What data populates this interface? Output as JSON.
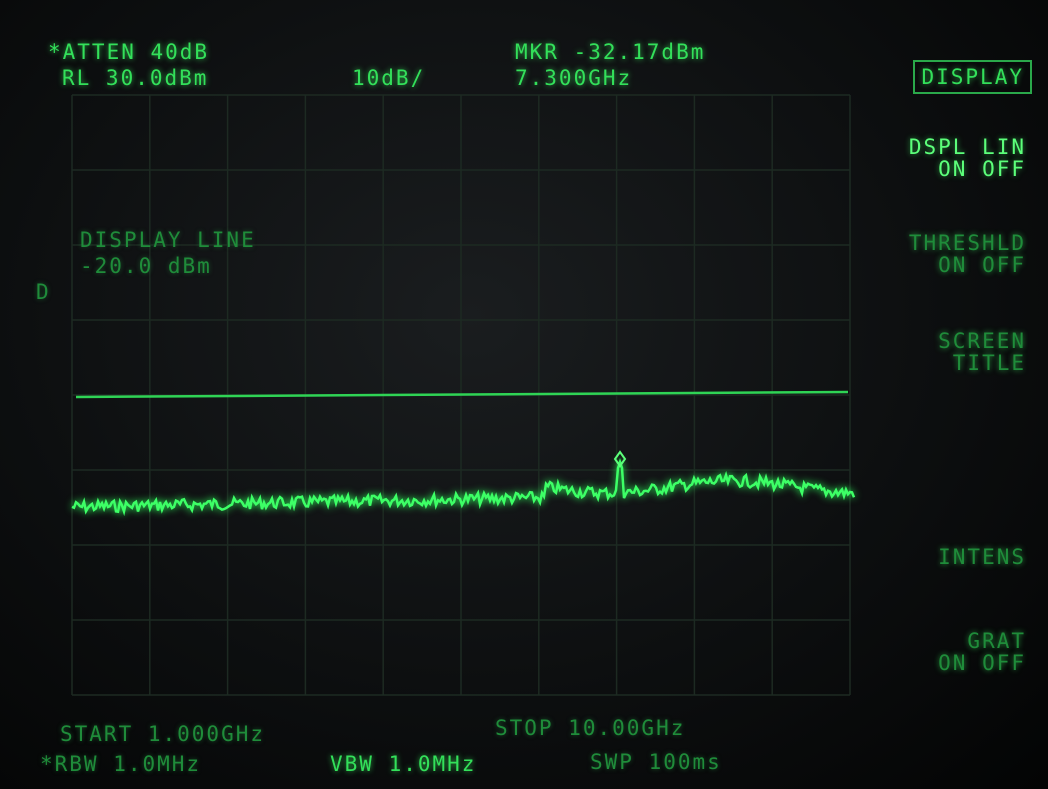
{
  "header": {
    "atten": "*ATTEN 40dB",
    "ref_level": "RL 30.0dBm",
    "scale": "10dB/",
    "marker": "MKR -32.17dBm",
    "marker_freq": "7.300GHz"
  },
  "annotation": {
    "title": "DISPLAY LINE",
    "value": "-20.0 dBm"
  },
  "line_marker": "D",
  "softkeys": [
    {
      "lines": [
        "DISPLAY"
      ]
    },
    {
      "lines": [
        "DSPL LIN",
        "ON OFF"
      ]
    },
    {
      "lines": [
        "THRESHLD",
        "ON OFF"
      ]
    },
    {
      "lines": [
        "SCREEN",
        "TITLE"
      ]
    },
    {
      "lines": [
        "INTENS"
      ]
    },
    {
      "lines": [
        "GRAT",
        "ON OFF"
      ]
    }
  ],
  "footer": {
    "start": "START 1.000GHz",
    "stop": "STOP 10.00GHz",
    "rbw": "*RBW 1.0MHz",
    "vbw": "VBW 1.0MHz",
    "sweep": "SWP 100ms"
  }
}
